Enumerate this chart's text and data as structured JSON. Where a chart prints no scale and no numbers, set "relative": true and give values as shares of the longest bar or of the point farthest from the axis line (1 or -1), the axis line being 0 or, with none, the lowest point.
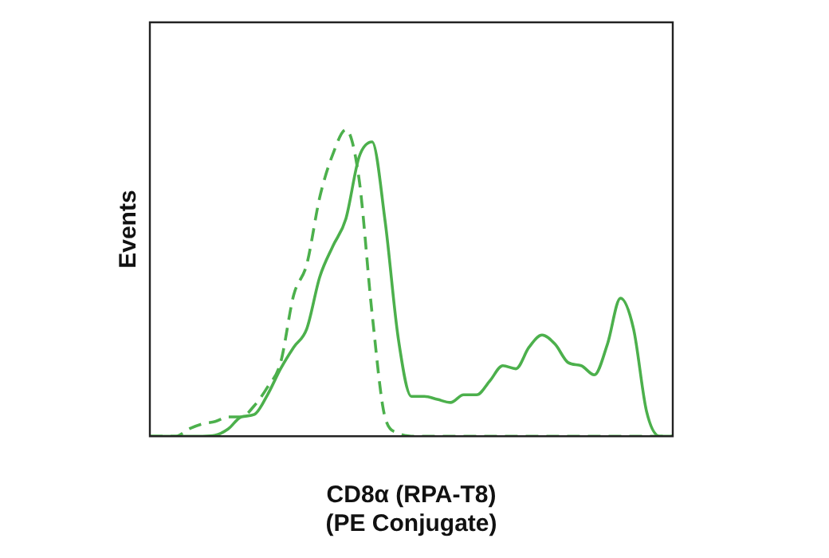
{
  "chart_data": {
    "type": "line",
    "relative": true,
    "xlabel": "CD8α (RPA-T8)\n(PE Conjugate)",
    "ylabel": "Events",
    "categories": [
      null,
      null,
      null,
      null,
      null,
      null,
      null,
      null,
      null,
      null,
      null,
      null,
      null,
      null,
      null,
      null,
      null,
      null,
      null,
      null,
      null,
      null,
      null,
      null,
      null,
      null,
      null,
      null,
      null,
      null,
      null,
      null,
      null,
      null,
      null,
      null,
      null,
      null,
      null,
      null,
      null
    ],
    "grid": false,
    "legend": false,
    "marker": "none",
    "series": [
      {
        "color": "#4cb04c",
        "line_style": "dashed",
        "values": [
          0,
          0,
          0,
          0.024,
          0.04,
          0.048,
          0.063,
          0.063,
          0.1,
          0.16,
          0.24,
          0.46,
          0.56,
          0.78,
          0.92,
          1,
          0.84,
          0.4,
          0.06,
          0.01,
          0,
          0,
          0,
          0,
          0,
          0,
          0,
          0,
          0,
          0,
          0,
          0,
          0,
          0,
          0,
          0,
          0,
          0,
          0,
          0,
          0
        ]
      },
      {
        "color": "#4cb04c",
        "line_style": "solid",
        "values": [
          0,
          0,
          0,
          0,
          0,
          0.003,
          0.024,
          0.063,
          0.071,
          0.135,
          0.22,
          0.29,
          0.35,
          0.52,
          0.62,
          0.71,
          0.91,
          0.96,
          0.7,
          0.32,
          0.13,
          0.13,
          0.12,
          0.11,
          0.135,
          0.135,
          0.18,
          0.23,
          0.22,
          0.29,
          0.33,
          0.3,
          0.24,
          0.23,
          0.2,
          0.3,
          0.45,
          0.35,
          0.08,
          0,
          0
        ]
      }
    ]
  }
}
